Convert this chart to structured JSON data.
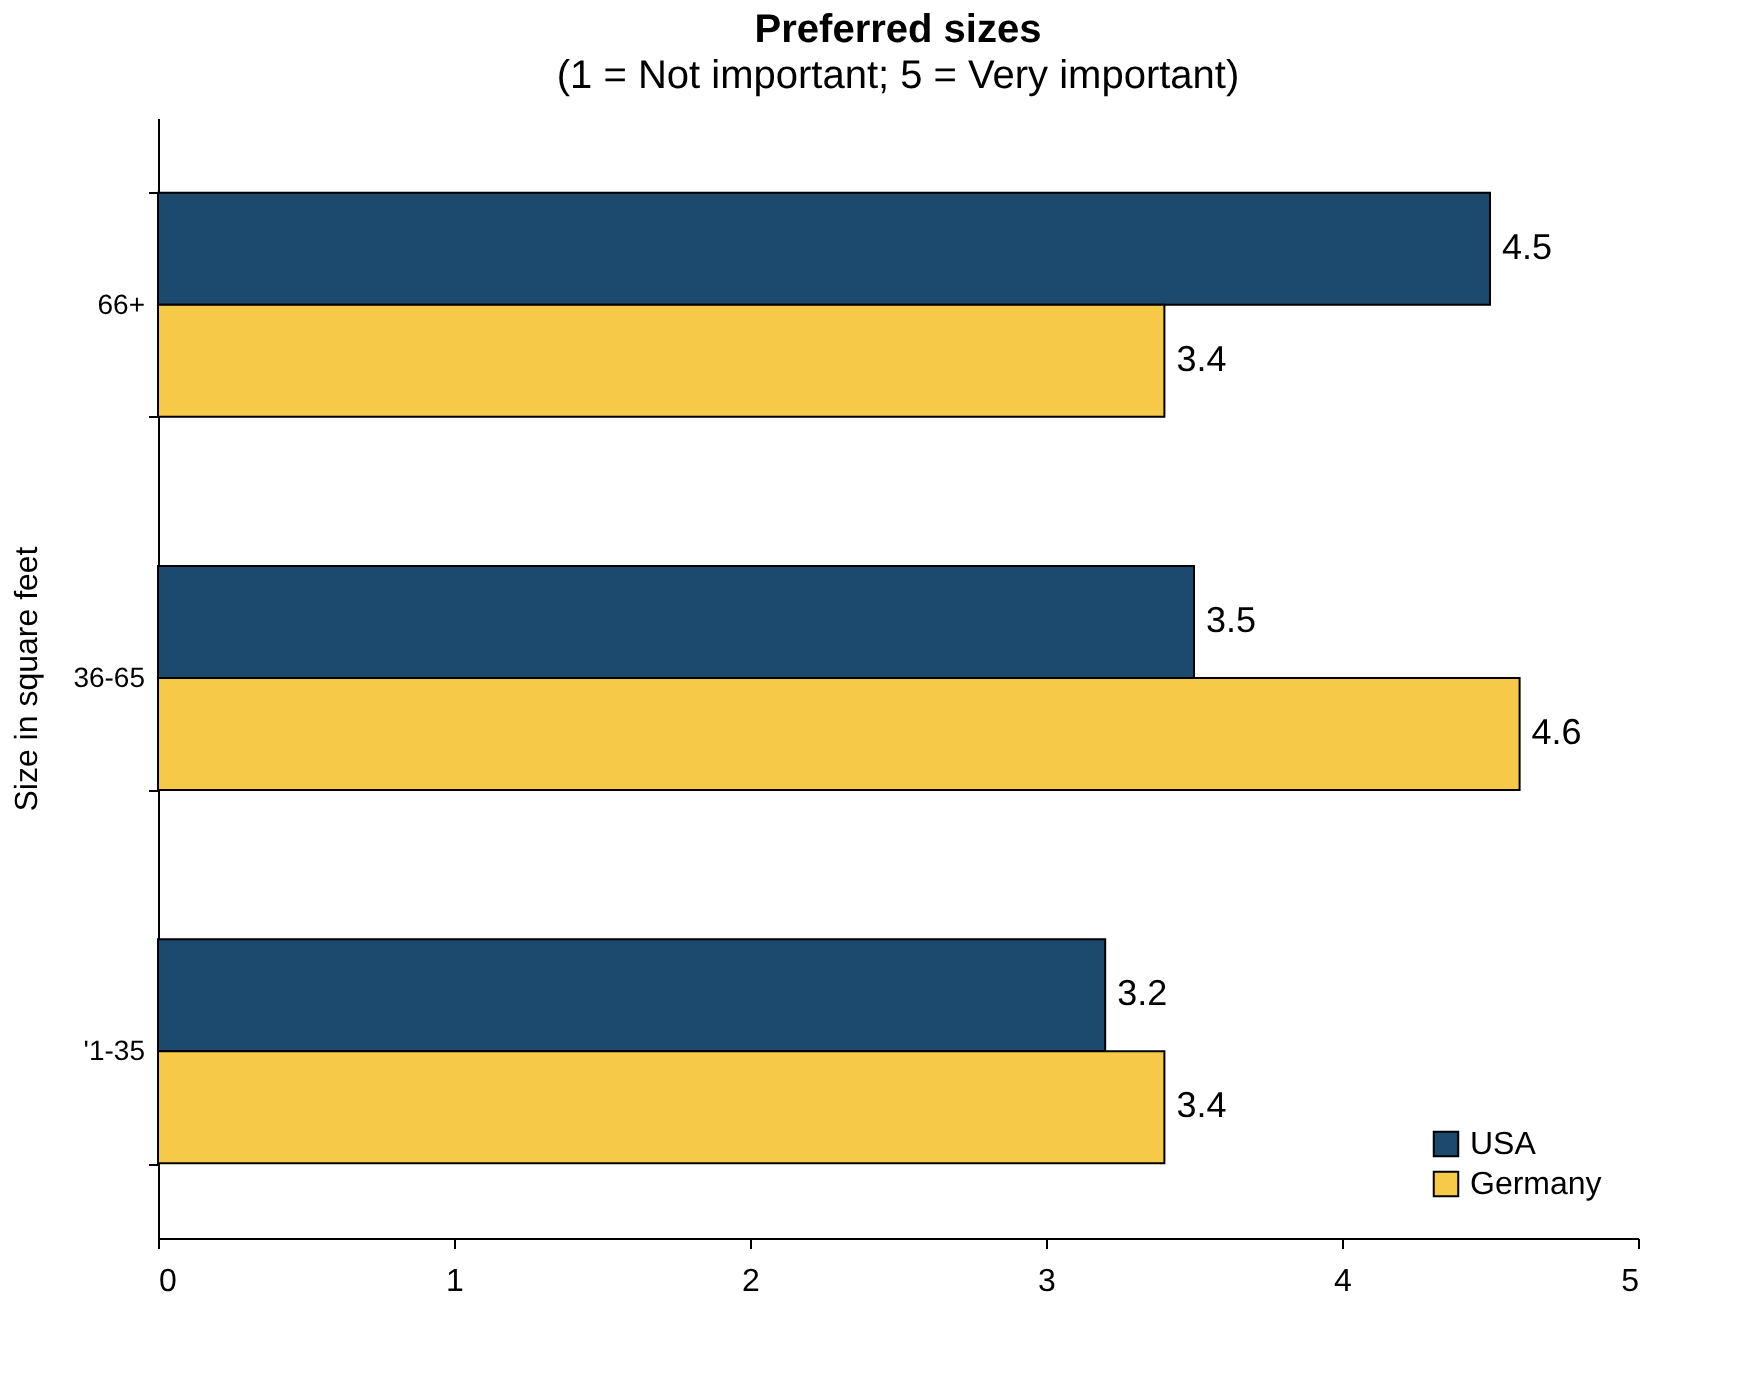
{
  "chart_data": {
    "type": "bar",
    "orientation": "horizontal",
    "title": "Preferred sizes",
    "subtitle": "(1 = Not important; 5 = Very important)",
    "ylabel": "Size in square feet",
    "categories": [
      "66+",
      "36-65",
      "'1-35"
    ],
    "series": [
      {
        "name": "USA",
        "color": "#1b4a6e",
        "values": [
          4.5,
          3.5,
          3.2
        ]
      },
      {
        "name": "Germany",
        "color": "#f7c948",
        "values": [
          3.4,
          4.6,
          3.4
        ]
      }
    ],
    "xlim": [
      0,
      5
    ],
    "xticks": [
      0,
      1,
      2,
      3,
      4,
      5
    ],
    "grid": false,
    "legend": "bottom right",
    "data_labels": true
  }
}
